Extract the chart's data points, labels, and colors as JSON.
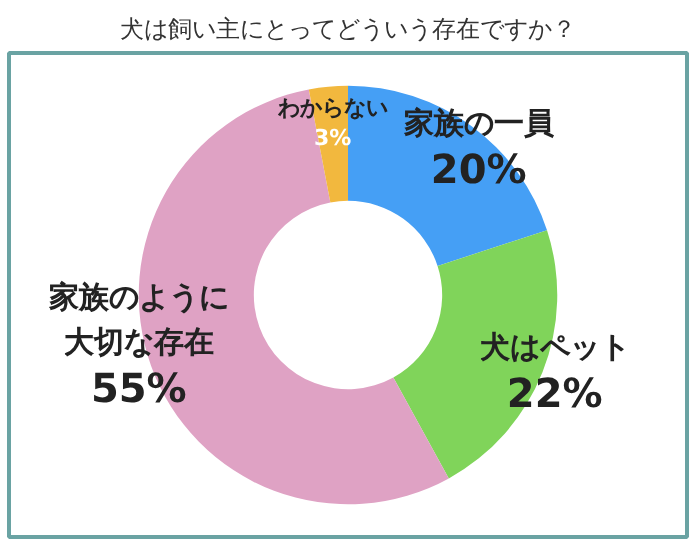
{
  "chart_data": {
    "type": "donut",
    "title": "犬は飼い主にとってどういう存在ですか？",
    "categories": [
      "家族の一員",
      "犬はペット",
      "家族のように大切な存在",
      "わからない"
    ],
    "values": [
      20,
      22,
      55,
      3
    ],
    "value_labels": [
      "20%",
      "22%",
      "55%",
      "3%"
    ],
    "colors": [
      "#459ff5",
      "#80d45a",
      "#dfa2c4",
      "#f2b83e"
    ]
  }
}
